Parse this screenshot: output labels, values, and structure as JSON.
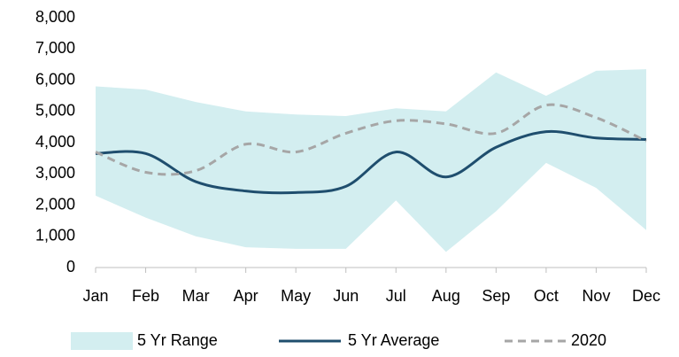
{
  "chart_data": {
    "type": "line",
    "categories": [
      "Jan",
      "Feb",
      "Mar",
      "Apr",
      "May",
      "Jun",
      "Jul",
      "Aug",
      "Sep",
      "Oct",
      "Nov",
      "Dec"
    ],
    "ylim": [
      0,
      8000
    ],
    "yticks": [
      0,
      {
        "value": 1000,
        "label": "1,000"
      },
      {
        "value": 2000,
        "label": "2,000"
      },
      {
        "value": 3000,
        "label": "3,000"
      },
      {
        "value": 4000,
        "label": "4,000"
      },
      {
        "value": 5000,
        "label": "5,000"
      },
      {
        "value": 6000,
        "label": "6,000"
      },
      {
        "value": 7000,
        "label": "7,000"
      },
      {
        "value": 8000,
        "label": "8,000"
      }
    ],
    "grid": false,
    "legend": "bottom",
    "series": [
      {
        "name": "5 Yr Range",
        "type": "range",
        "color": "#d3eef0",
        "high": [
          5800,
          5700,
          5300,
          5000,
          4900,
          4850,
          5100,
          5000,
          6250,
          5500,
          6300,
          6350
        ],
        "low": [
          2300,
          1600,
          1000,
          650,
          600,
          600,
          2150,
          500,
          1800,
          3350,
          2550,
          1200
        ]
      },
      {
        "name": "5 Yr Average",
        "type": "line",
        "color": "#1f4e6e",
        "dashed": false,
        "values": [
          3650,
          3650,
          2750,
          2450,
          2400,
          2600,
          3700,
          2900,
          3850,
          4350,
          4150,
          4100
        ]
      },
      {
        "name": "2020",
        "type": "line",
        "color": "#a6a6a6",
        "dashed": true,
        "values": [
          3700,
          3050,
          3100,
          3950,
          3700,
          4300,
          4700,
          4600,
          4300,
          5200,
          4800,
          4050
        ]
      }
    ]
  }
}
